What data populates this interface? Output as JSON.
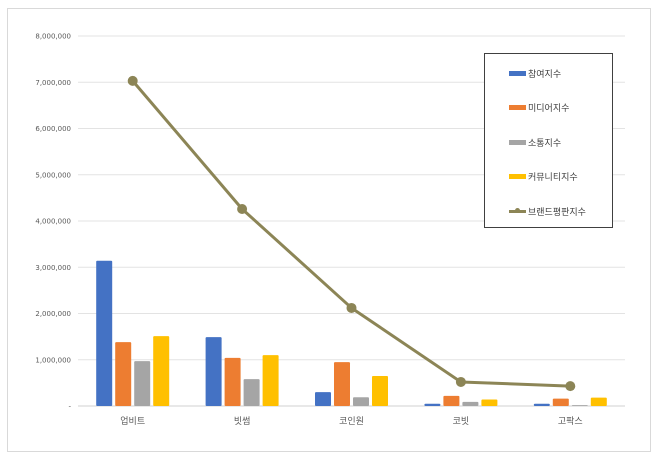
{
  "chart_data": {
    "type": "bar+line",
    "title": "",
    "xlabel": "",
    "ylabel": "",
    "ylim": [
      0,
      8000000
    ],
    "yticks": [
      "-",
      "1,000,000",
      "2,000,000",
      "3,000,000",
      "4,000,000",
      "5,000,000",
      "6,000,000",
      "7,000,000",
      "8,000,000"
    ],
    "categories": [
      "업비트",
      "빗썸",
      "코인원",
      "코빗",
      "고팍스"
    ],
    "series": [
      {
        "name": "참여지수",
        "type": "bar",
        "color": "#4472c4",
        "values": [
          3140000,
          1490000,
          300000,
          50000,
          50000
        ]
      },
      {
        "name": "미디어지수",
        "type": "bar",
        "color": "#ed7d31",
        "values": [
          1380000,
          1040000,
          950000,
          220000,
          160000
        ]
      },
      {
        "name": "소통지수",
        "type": "bar",
        "color": "#a5a5a5",
        "values": [
          970000,
          580000,
          190000,
          90000,
          20000
        ]
      },
      {
        "name": "커뮤니티지수",
        "type": "bar",
        "color": "#ffc000",
        "values": [
          1510000,
          1100000,
          650000,
          140000,
          180000
        ]
      },
      {
        "name": "브랜드평판지수",
        "type": "line",
        "color": "#8c8556",
        "values": [
          7030000,
          4260000,
          2120000,
          520000,
          430000
        ]
      }
    ],
    "grid": true,
    "legend_position": "right-top"
  },
  "legend": {
    "items": [
      {
        "label": "참여지수",
        "color": "#4472c4",
        "kind": "bar"
      },
      {
        "label": "미디어지수",
        "color": "#ed7d31",
        "kind": "bar"
      },
      {
        "label": "소통지수",
        "color": "#a5a5a5",
        "kind": "bar"
      },
      {
        "label": "커뮤니티지수",
        "color": "#ffc000",
        "kind": "bar"
      },
      {
        "label": "브랜드평판지수",
        "color": "#8c8556",
        "kind": "line"
      }
    ]
  }
}
